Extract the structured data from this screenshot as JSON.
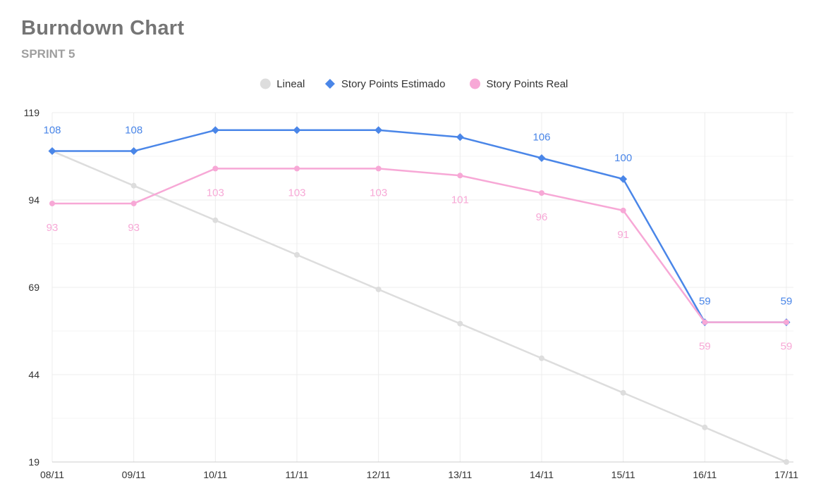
{
  "chart_data": {
    "type": "line",
    "title": "Burndown Chart",
    "subtitle": "SPRINT 5",
    "categories": [
      "08/11",
      "09/11",
      "10/11",
      "11/11",
      "12/11",
      "13/11",
      "14/11",
      "15/11",
      "16/11",
      "17/11"
    ],
    "y_ticks": [
      19,
      44,
      69,
      94,
      119
    ],
    "ylim": [
      19,
      119
    ],
    "grid": true,
    "legend_position": "top",
    "series": [
      {
        "name": "Lineal",
        "color": "#dddddd",
        "marker": "circle",
        "show_labels": false,
        "values": [
          108,
          98.1,
          88.2,
          78.3,
          68.4,
          58.6,
          48.7,
          38.8,
          28.9,
          19
        ],
        "labels": [
          "",
          "",
          "",
          "",
          "",
          "",
          "",
          "",
          "",
          ""
        ]
      },
      {
        "name": "Story Points Estimado",
        "color": "#4a86e8",
        "marker": "diamond",
        "show_labels": true,
        "label_position": "above",
        "values": [
          108,
          108,
          114,
          114,
          114,
          112,
          106,
          100,
          59,
          59
        ],
        "labels": [
          "108",
          "108",
          "",
          "",
          "",
          "",
          "106",
          "100",
          "59",
          "59"
        ]
      },
      {
        "name": "Story Points Real",
        "color": "#f7a8d6",
        "marker": "circle",
        "show_labels": true,
        "label_position": "below",
        "values": [
          93,
          93,
          103,
          103,
          103,
          101,
          96,
          91,
          59,
          59
        ],
        "labels": [
          "93",
          "93",
          "103",
          "103",
          "103",
          "101",
          "96",
          "91",
          "59",
          "59"
        ]
      }
    ]
  }
}
